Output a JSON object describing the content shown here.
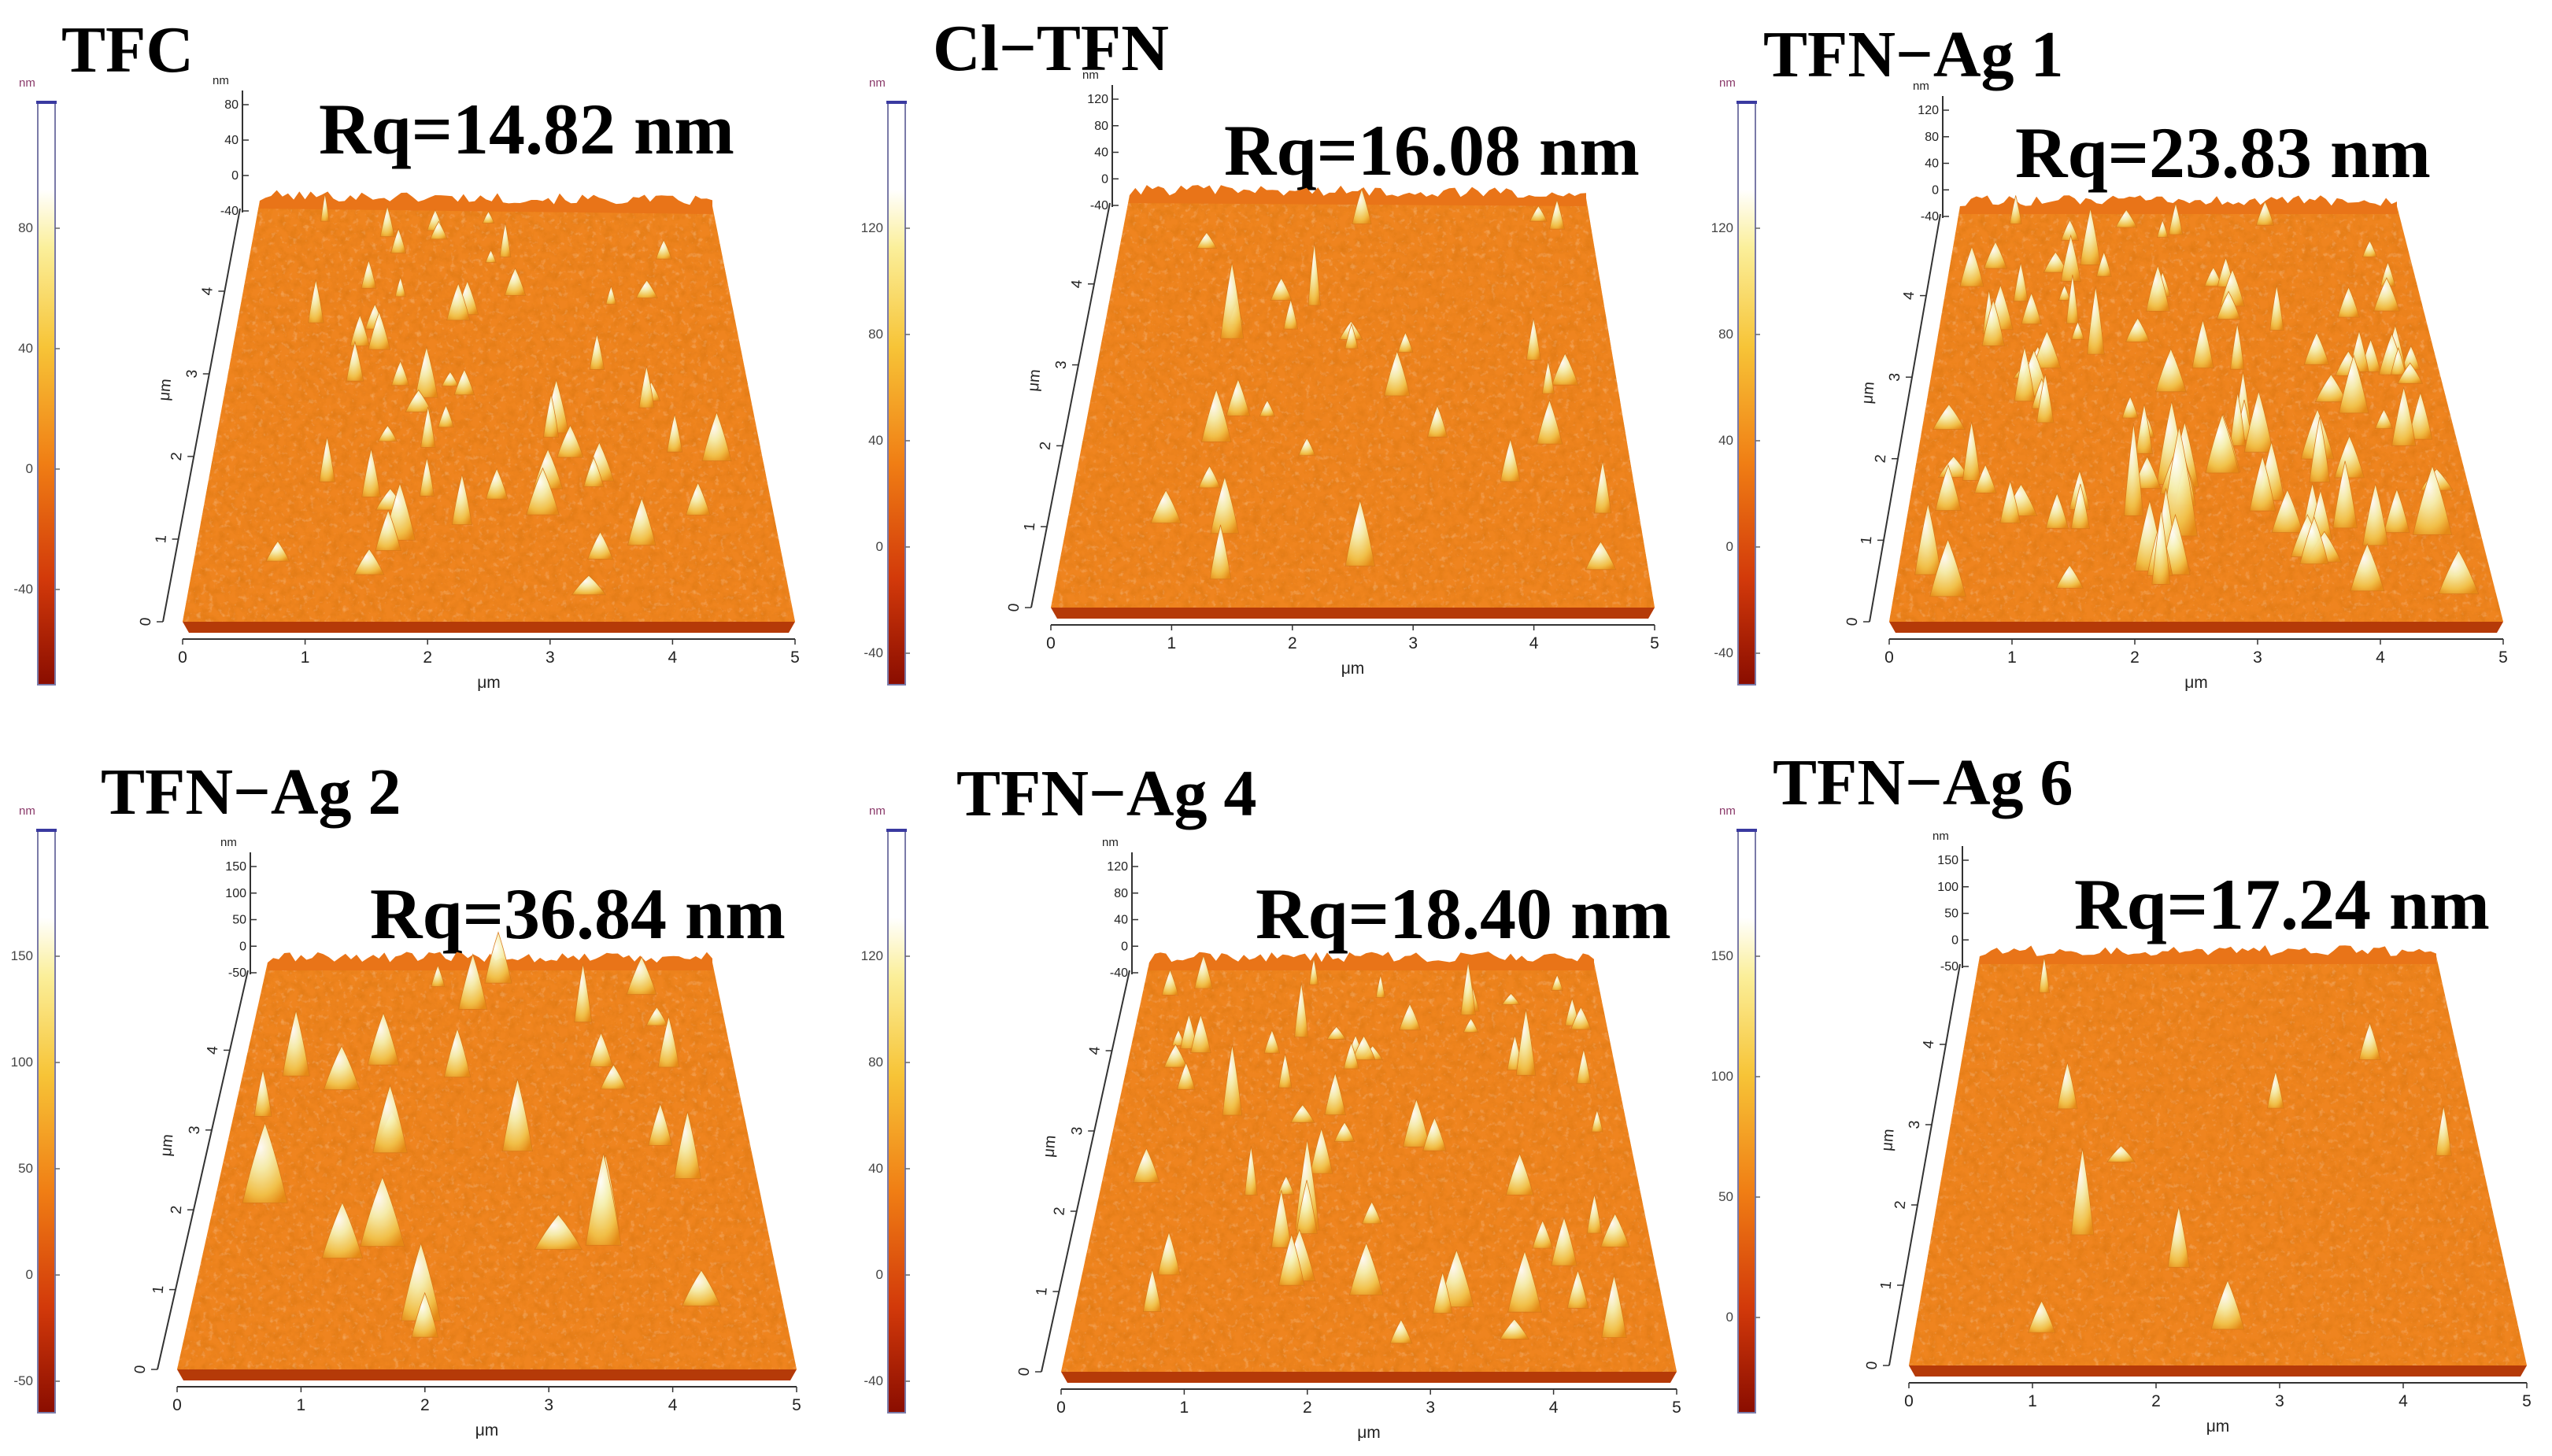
{
  "panels": [
    {
      "title": "TFC",
      "rq": "Rq=14.82 nm",
      "colorbar": {
        "unit": "nm",
        "ticks": [
          "80",
          "40",
          "0",
          "-40"
        ]
      },
      "z_axis": {
        "unit": "nm",
        "ticks": [
          "80",
          "40",
          "0",
          "-40"
        ]
      },
      "y_axis": {
        "unit": "μm",
        "ticks": [
          "0",
          "1",
          "2",
          "3",
          "4"
        ]
      },
      "x_axis": {
        "unit": "μm",
        "ticks": [
          "0",
          "1",
          "2",
          "3",
          "4",
          "5"
        ]
      }
    },
    {
      "title": "Cl−TFN",
      "rq": "Rq=16.08 nm",
      "colorbar": {
        "unit": "nm",
        "ticks": [
          "120",
          "80",
          "40",
          "0",
          "-40"
        ]
      },
      "z_axis": {
        "unit": "nm",
        "ticks": [
          "120",
          "80",
          "40",
          "0",
          "-40"
        ]
      },
      "y_axis": {
        "unit": "μm",
        "ticks": [
          "0",
          "1",
          "2",
          "3",
          "4"
        ]
      },
      "x_axis": {
        "unit": "μm",
        "ticks": [
          "0",
          "1",
          "2",
          "3",
          "4",
          "5"
        ]
      }
    },
    {
      "title": "TFN−Ag 1",
      "rq": "Rq=23.83 nm",
      "colorbar": {
        "unit": "nm",
        "ticks": [
          "120",
          "80",
          "40",
          "0",
          "-40"
        ]
      },
      "z_axis": {
        "unit": "nm",
        "ticks": [
          "120",
          "80",
          "40",
          "0",
          "-40"
        ]
      },
      "y_axis": {
        "unit": "μm",
        "ticks": [
          "0",
          "1",
          "2",
          "3",
          "4"
        ]
      },
      "x_axis": {
        "unit": "μm",
        "ticks": [
          "0",
          "1",
          "2",
          "3",
          "4",
          "5"
        ]
      }
    },
    {
      "title": "TFN−Ag 2",
      "rq": "Rq=36.84 nm",
      "colorbar": {
        "unit": "nm",
        "ticks": [
          "150",
          "100",
          "50",
          "0",
          "-50"
        ]
      },
      "z_axis": {
        "unit": "nm",
        "ticks": [
          "150",
          "100",
          "50",
          "0",
          "-50"
        ]
      },
      "y_axis": {
        "unit": "μm",
        "ticks": [
          "0",
          "1",
          "2",
          "3",
          "4"
        ]
      },
      "x_axis": {
        "unit": "μm",
        "ticks": [
          "0",
          "1",
          "2",
          "3",
          "4",
          "5"
        ]
      }
    },
    {
      "title": "TFN−Ag 4",
      "rq": "Rq=18.40 nm",
      "colorbar": {
        "unit": "nm",
        "ticks": [
          "120",
          "80",
          "40",
          "0",
          "-40"
        ]
      },
      "z_axis": {
        "unit": "nm",
        "ticks": [
          "120",
          "80",
          "40",
          "0",
          "-40"
        ]
      },
      "y_axis": {
        "unit": "μm",
        "ticks": [
          "0",
          "1",
          "2",
          "3",
          "4"
        ]
      },
      "x_axis": {
        "unit": "μm",
        "ticks": [
          "0",
          "1",
          "2",
          "3",
          "4",
          "5"
        ]
      }
    },
    {
      "title": "TFN−Ag 6",
      "rq": "Rq=17.24 nm",
      "colorbar": {
        "unit": "nm",
        "ticks": [
          "150",
          "100",
          "50",
          "0"
        ]
      },
      "z_axis": {
        "unit": "nm",
        "ticks": [
          "150",
          "100",
          "50",
          "0",
          "-50"
        ]
      },
      "y_axis": {
        "unit": "μm",
        "ticks": [
          "0",
          "1",
          "2",
          "3",
          "4"
        ]
      },
      "x_axis": {
        "unit": "μm",
        "ticks": [
          "0",
          "1",
          "2",
          "3",
          "4",
          "5"
        ]
      }
    }
  ]
}
